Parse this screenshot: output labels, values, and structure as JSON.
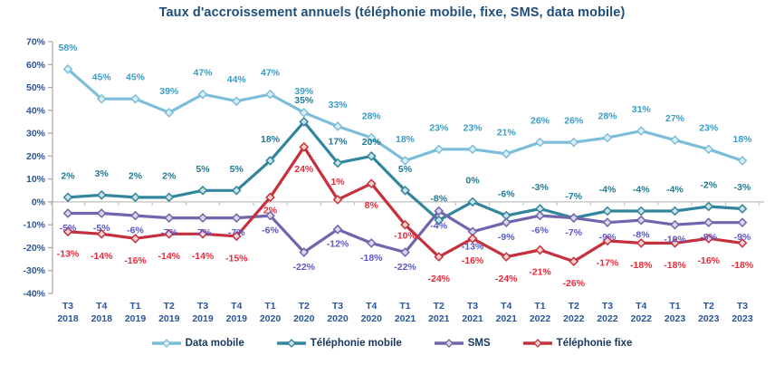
{
  "title": "Taux d'accroissement annuels (téléphonie mobile, fixe, SMS, data mobile)",
  "colors": {
    "title_text": "#1F4E79",
    "axis_label_text": "#2A5599",
    "axis_line": "#A6A6A6",
    "zero_line": "#BFBFBF",
    "legend_text": "#17375D",
    "background": "#FFFFFF"
  },
  "chart_data": {
    "type": "line",
    "title": "Taux d'accroissement annuels (téléphonie mobile, fixe, SMS, data mobile)",
    "categories": [
      "T3 2018",
      "T4 2018",
      "T1 2019",
      "T2 2019",
      "T3 2019",
      "T4 2019",
      "T1 2020",
      "T2 2020",
      "T3 2020",
      "T4 2020",
      "T1 2021",
      "T2 2021",
      "T3 2021",
      "T4 2021",
      "T1 2022",
      "T2 2022",
      "T3 2022",
      "T4 2022",
      "T1 2023",
      "T2 2023",
      "T3 2023"
    ],
    "series": [
      {
        "name": "Data mobile",
        "values": [
          58,
          45,
          45,
          39,
          47,
          44,
          47,
          39,
          33,
          28,
          18,
          23,
          23,
          21,
          26,
          26,
          28,
          31,
          27,
          23,
          18
        ],
        "color": "#7CBEDA",
        "marker_fill": "#DCEFF7",
        "label_color": "#3A9CC4",
        "label_offset": -24,
        "label_overrides": {}
      },
      {
        "name": "Téléphonie mobile",
        "values": [
          2,
          3,
          2,
          2,
          5,
          5,
          18,
          35,
          17,
          20,
          5,
          -8,
          0,
          -6,
          -3,
          -7,
          -4,
          -4,
          -4,
          -2,
          -3
        ],
        "color": "#31859C",
        "marker_fill": "#C9E3EA",
        "label_color": "#1F7A93",
        "label_offset": -24,
        "label_overrides": {
          "9": -16
        }
      },
      {
        "name": "SMS",
        "values": [
          -5,
          -5,
          -6,
          -7,
          -7,
          -7,
          -6,
          -22,
          -12,
          -18,
          -22,
          -4,
          -13,
          -9,
          -6,
          -7,
          -9,
          -8,
          -10,
          -9,
          -9
        ],
        "color": "#7066AD",
        "marker_fill": "#DBD8EC",
        "label_color": "#5A58C8",
        "label_offset": 16,
        "label_overrides": {}
      },
      {
        "name": "Téléphonie fixe",
        "values": [
          -13,
          -14,
          -16,
          -14,
          -14,
          -15,
          2,
          24,
          1,
          8,
          -10,
          -24,
          -16,
          -24,
          -21,
          -26,
          -17,
          -18,
          -18,
          -16,
          -18
        ],
        "color": "#C5303C",
        "marker_fill": "#F5D4D6",
        "label_color": "#E8293A",
        "label_offset": 24,
        "label_overrides": {
          "6": 14,
          "8": -20,
          "10": 12
        }
      }
    ],
    "ylim": [
      -40,
      70
    ],
    "ytick_step": 10,
    "y_tick_labels": [
      "70%",
      "60%",
      "50%",
      "40%",
      "30%",
      "20%",
      "10%",
      "0%",
      "-10%",
      "-20%",
      "-30%",
      "-40%"
    ],
    "grid": "zero-line-only",
    "legend_position": "bottom",
    "value_suffix": "%"
  }
}
